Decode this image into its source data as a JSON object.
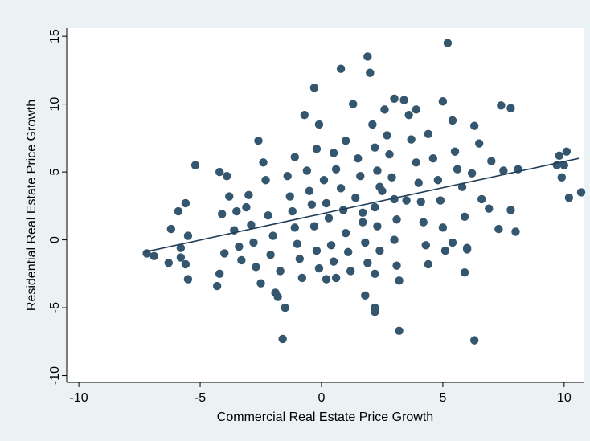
{
  "chart_data": {
    "type": "scatter",
    "title": "",
    "xlabel": "Commercial Real Estate Price Growth",
    "ylabel": "Residential Real Estate Price Growth",
    "xlim": [
      -10.5,
      10.8
    ],
    "ylim": [
      -10.5,
      15.6
    ],
    "xticks": [
      -10,
      -5,
      0,
      5,
      10
    ],
    "yticks": [
      -10,
      -5,
      0,
      5,
      10,
      15
    ],
    "grid": false,
    "legend": "none",
    "colors": {
      "point": "#34566e",
      "fit_line": "#1f3d57",
      "plot_bg": "#ffffff",
      "outer_bg": "#eaf2f3"
    },
    "fit_line": {
      "x": [
        -7.3,
        10.6
      ],
      "y": [
        -0.9,
        6.0
      ]
    },
    "series": [
      {
        "points": [
          [
            -7.2,
            -1.0
          ],
          [
            -6.9,
            -1.2
          ],
          [
            -6.3,
            -1.7
          ],
          [
            -6.2,
            0.8
          ],
          [
            -5.8,
            -0.6
          ],
          [
            -5.8,
            -1.3
          ],
          [
            -5.9,
            2.1
          ],
          [
            -5.6,
            2.7
          ],
          [
            -5.5,
            0.3
          ],
          [
            -5.6,
            -1.8
          ],
          [
            -5.5,
            -2.9
          ],
          [
            -5.2,
            5.5
          ],
          [
            -4.2,
            5.0
          ],
          [
            -4.1,
            1.9
          ],
          [
            -4.0,
            -1.0
          ],
          [
            -3.9,
            4.7
          ],
          [
            -4.3,
            -3.4
          ],
          [
            -4.2,
            -2.5
          ],
          [
            -3.8,
            3.2
          ],
          [
            -3.5,
            2.1
          ],
          [
            -3.6,
            0.7
          ],
          [
            -3.4,
            -0.5
          ],
          [
            -3.3,
            -1.5
          ],
          [
            -3.1,
            2.4
          ],
          [
            -3.0,
            3.3
          ],
          [
            -2.9,
            1.1
          ],
          [
            -2.8,
            -0.2
          ],
          [
            -2.7,
            -2.0
          ],
          [
            -2.5,
            -3.2
          ],
          [
            -2.6,
            7.3
          ],
          [
            -2.4,
            5.7
          ],
          [
            -2.3,
            4.4
          ],
          [
            -2.2,
            1.8
          ],
          [
            -2.0,
            0.3
          ],
          [
            -2.1,
            -1.1
          ],
          [
            -1.9,
            -3.9
          ],
          [
            -1.7,
            -2.3
          ],
          [
            -1.8,
            -4.2
          ],
          [
            -1.6,
            -7.3
          ],
          [
            -1.5,
            -5.0
          ],
          [
            -1.4,
            4.7
          ],
          [
            -1.3,
            3.2
          ],
          [
            -1.2,
            2.1
          ],
          [
            -1.1,
            0.9
          ],
          [
            -1.0,
            -0.3
          ],
          [
            -0.9,
            -1.4
          ],
          [
            -0.8,
            -2.8
          ],
          [
            -1.1,
            6.1
          ],
          [
            -0.6,
            5.1
          ],
          [
            -0.5,
            3.6
          ],
          [
            -0.4,
            2.6
          ],
          [
            -0.3,
            1.0
          ],
          [
            -0.2,
            -0.8
          ],
          [
            -0.1,
            -2.1
          ],
          [
            -0.2,
            6.7
          ],
          [
            -0.3,
            11.2
          ],
          [
            -0.1,
            8.5
          ],
          [
            -0.7,
            9.2
          ],
          [
            0.1,
            4.4
          ],
          [
            0.2,
            2.7
          ],
          [
            0.3,
            1.6
          ],
          [
            0.4,
            -0.4
          ],
          [
            0.5,
            -1.6
          ],
          [
            0.6,
            -2.8
          ],
          [
            0.2,
            -2.9
          ],
          [
            0.5,
            6.4
          ],
          [
            0.6,
            5.2
          ],
          [
            0.8,
            3.8
          ],
          [
            0.9,
            2.2
          ],
          [
            1.0,
            0.5
          ],
          [
            1.1,
            -0.9
          ],
          [
            1.2,
            -2.3
          ],
          [
            0.8,
            12.6
          ],
          [
            1.3,
            10.0
          ],
          [
            1.0,
            7.3
          ],
          [
            1.5,
            6.0
          ],
          [
            1.6,
            4.7
          ],
          [
            1.4,
            3.1
          ],
          [
            1.7,
            2.0
          ],
          [
            1.8,
            -0.2
          ],
          [
            1.9,
            -1.7
          ],
          [
            1.8,
            -4.1
          ],
          [
            1.9,
            13.5
          ],
          [
            2.0,
            12.3
          ],
          [
            2.1,
            8.5
          ],
          [
            2.2,
            6.8
          ],
          [
            2.3,
            5.1
          ],
          [
            2.4,
            3.9
          ],
          [
            2.2,
            2.4
          ],
          [
            2.3,
            1.0
          ],
          [
            2.4,
            -0.8
          ],
          [
            2.2,
            -2.5
          ],
          [
            2.2,
            -5.0
          ],
          [
            2.2,
            -5.3
          ],
          [
            2.6,
            9.6
          ],
          [
            2.7,
            7.7
          ],
          [
            2.8,
            6.3
          ],
          [
            2.9,
            4.6
          ],
          [
            3.0,
            3.0
          ],
          [
            3.1,
            1.5
          ],
          [
            3.0,
            0.0
          ],
          [
            3.1,
            -1.9
          ],
          [
            3.2,
            -3.0
          ],
          [
            3.2,
            -6.7
          ],
          [
            3.0,
            10.4
          ],
          [
            3.4,
            10.3
          ],
          [
            3.6,
            9.2
          ],
          [
            3.7,
            7.4
          ],
          [
            3.9,
            5.7
          ],
          [
            4.0,
            4.2
          ],
          [
            4.1,
            2.8
          ],
          [
            4.2,
            1.3
          ],
          [
            4.3,
            -0.4
          ],
          [
            4.4,
            -1.8
          ],
          [
            3.9,
            9.6
          ],
          [
            4.4,
            7.8
          ],
          [
            4.6,
            6.0
          ],
          [
            4.8,
            4.4
          ],
          [
            4.9,
            2.9
          ],
          [
            5.0,
            0.9
          ],
          [
            5.1,
            -0.8
          ],
          [
            5.0,
            10.2
          ],
          [
            5.2,
            14.5
          ],
          [
            5.4,
            8.8
          ],
          [
            5.5,
            6.5
          ],
          [
            5.6,
            5.2
          ],
          [
            5.8,
            3.9
          ],
          [
            5.9,
            1.7
          ],
          [
            6.0,
            -0.6
          ],
          [
            5.9,
            -2.4
          ],
          [
            6.3,
            8.4
          ],
          [
            6.5,
            7.1
          ],
          [
            6.2,
            4.9
          ],
          [
            6.6,
            3.0
          ],
          [
            6.9,
            2.3
          ],
          [
            7.3,
            0.8
          ],
          [
            6.3,
            -7.4
          ],
          [
            7.4,
            9.9
          ],
          [
            7.8,
            9.7
          ],
          [
            7.0,
            5.8
          ],
          [
            7.5,
            5.1
          ],
          [
            8.1,
            5.2
          ],
          [
            7.8,
            2.2
          ],
          [
            8.0,
            0.6
          ],
          [
            9.7,
            5.5
          ],
          [
            9.8,
            6.2
          ],
          [
            10.1,
            6.5
          ],
          [
            9.9,
            4.6
          ],
          [
            10.0,
            5.5
          ],
          [
            10.2,
            3.1
          ],
          [
            10.7,
            3.5
          ],
          [
            6.0,
            -0.7
          ],
          [
            5.4,
            -0.2
          ],
          [
            3.5,
            2.9
          ],
          [
            2.5,
            3.6
          ],
          [
            1.7,
            1.3
          ]
        ]
      }
    ]
  }
}
